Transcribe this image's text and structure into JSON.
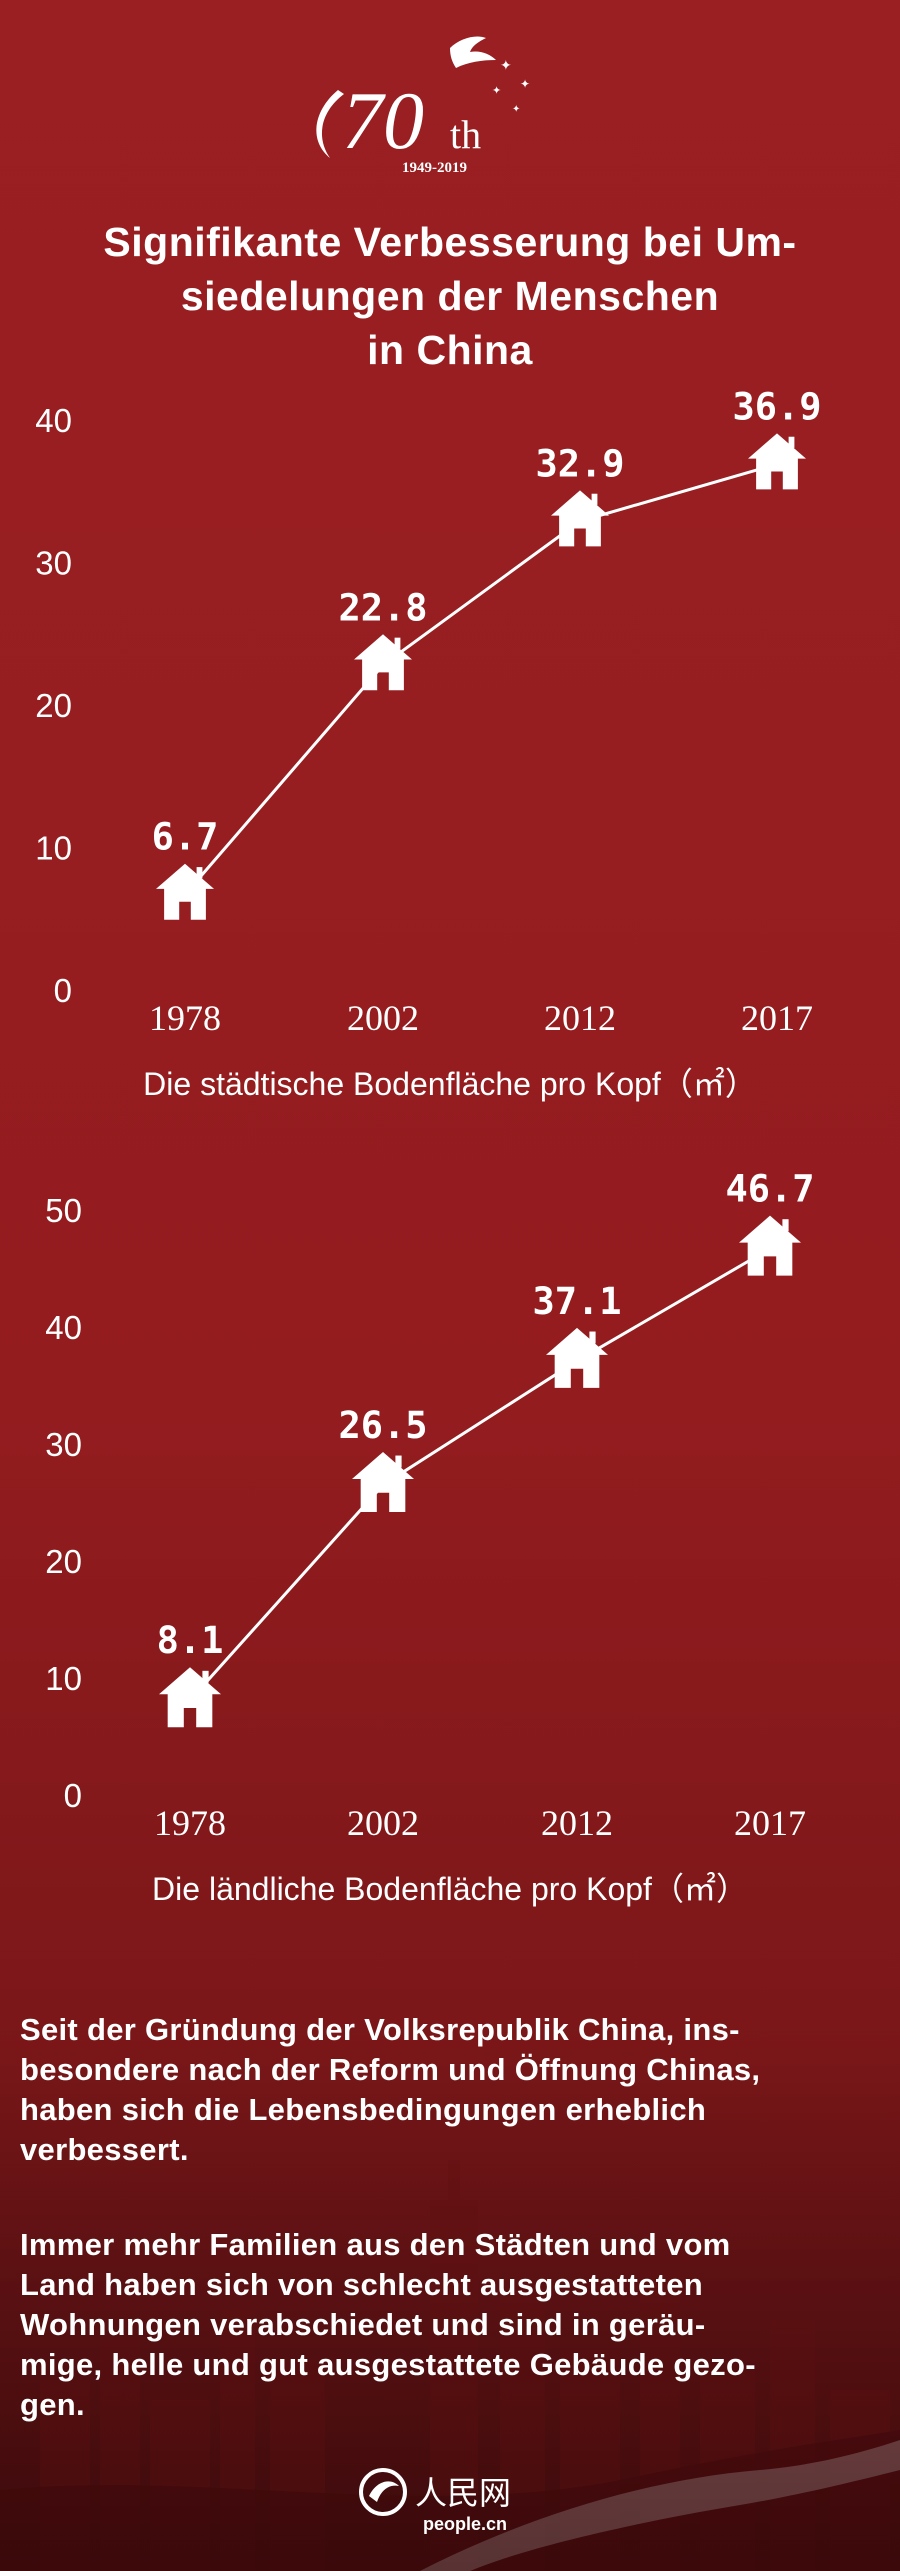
{
  "logo": {
    "number": "70",
    "suffix": "th",
    "years": "1949-2019"
  },
  "title": "Signifikante Verbesserung bei Um-\nsiedelungen der Menschen\nin China",
  "chart_data": [
    {
      "type": "line",
      "categories": [
        "1978",
        "2002",
        "2012",
        "2017"
      ],
      "values": [
        6.7,
        22.8,
        32.9,
        36.9
      ],
      "value_labels": [
        "6.7",
        "22.8",
        "32.9",
        "36.9"
      ],
      "yticks": [
        "0",
        "10",
        "20",
        "30",
        "40"
      ],
      "ylim": [
        0,
        40
      ],
      "xlabel": "Die städtische Bodenfläche pro Kopf（㎡）",
      "marker": "house-icon",
      "grid": false
    },
    {
      "type": "line",
      "categories": [
        "1978",
        "2002",
        "2012",
        "2017"
      ],
      "values": [
        8.1,
        26.5,
        37.1,
        46.7
      ],
      "value_labels": [
        "8.1",
        "26.5",
        "37.1",
        "46.7"
      ],
      "yticks": [
        "0",
        "10",
        "20",
        "30",
        "40",
        "50"
      ],
      "ylim": [
        0,
        50
      ],
      "xlabel": "Die ländliche Bodenfläche pro Kopf（㎡）",
      "marker": "house-icon",
      "grid": false
    }
  ],
  "paragraphs": [
    "Seit der Gründung der Volksrepublik China, ins-\nbesondere nach der Reform und Öffnung Chinas,\nhaben sich die Lebensbedingungen erheblich\nverbessert.",
    "Immer mehr Familien aus den Städten und vom\nLand haben sich von schlecht ausgestatteten\nWohnungen verabschiedet und sind in gerä­u-\nmige, helle und gut ausgestattete Gebäude gezo-\ngen."
  ],
  "footer": {
    "brand_cn": "人民网",
    "brand_url": "people.cn"
  },
  "colors": {
    "background": "#931c1f",
    "foreground": "#ffffff"
  }
}
